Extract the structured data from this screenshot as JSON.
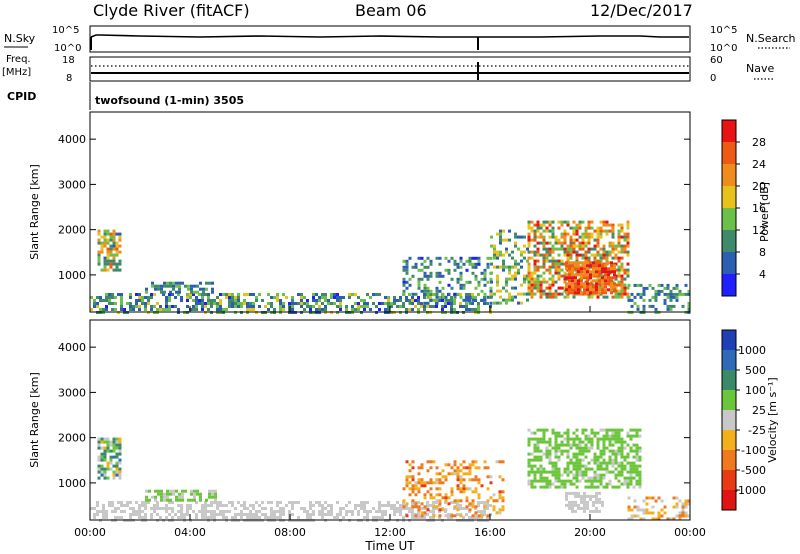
{
  "header": {
    "station": "Clyde River (fitACF)",
    "beam": "Beam 06",
    "date": "12/Dec/2017"
  },
  "top_panels": {
    "nsky_label": "N.Sky",
    "nsky_ticks": [
      "10^5",
      "10^0"
    ],
    "nsearch_label": "N.Search",
    "nsearch_ticks": [
      "10^5",
      "10^0"
    ],
    "freq_label": "Freq.",
    "freq_unit": "[MHz]",
    "freq_ticks": [
      "18",
      "8"
    ],
    "nave_label": "Nave",
    "nave_ticks": [
      "60",
      "0"
    ],
    "cpid_label": "CPID",
    "cpid_text": "twofsound (1-min) 3505"
  },
  "axes": {
    "ylabel": "Slant Range [km]",
    "xlabel": "Time UT",
    "yticks": [
      "1000",
      "2000",
      "3000",
      "4000"
    ],
    "xticks": [
      "00:00",
      "04:00",
      "08:00",
      "12:00",
      "16:00",
      "20:00",
      "00:00"
    ]
  },
  "colorbars": {
    "power": {
      "label": "Power [dB]",
      "ticks": [
        "4",
        "8",
        "12",
        "16",
        "20",
        "24",
        "28"
      ],
      "colors": [
        "#1f1fff",
        "#2c5fb4",
        "#3f8a68",
        "#6cc04a",
        "#e8c21c",
        "#f08c1e",
        "#ee5a14",
        "#e81414"
      ]
    },
    "velocity": {
      "label": "Velocity [m s⁻¹]",
      "ticks": [
        "1000",
        "500",
        "100",
        "25",
        "-25",
        "-100",
        "-500",
        "-1000"
      ],
      "colors": [
        "#1f3fb4",
        "#2f6ab8",
        "#3a8a6a",
        "#6cc63c",
        "#c8c8c8",
        "#f4b01c",
        "#f0781e",
        "#e83a14",
        "#e01414"
      ]
    }
  },
  "chart_data": [
    {
      "type": "heatmap",
      "title": "Power",
      "xlabel": "Time UT",
      "ylabel": "Slant Range [km]",
      "xlim": [
        "00:00",
        "24:00"
      ],
      "ylim": [
        180,
        4600
      ],
      "colorbar_label": "Power [dB]",
      "colorbar_range": [
        0,
        32
      ],
      "regions": [
        {
          "t0": 0.0,
          "t1": 16.0,
          "r0": 180,
          "r1": 600,
          "density": 0.5,
          "vmin": 3,
          "vmax": 18
        },
        {
          "t0": 0.3,
          "t1": 1.2,
          "r0": 1100,
          "r1": 2000,
          "density": 0.7,
          "vmin": 6,
          "vmax": 26
        },
        {
          "t0": 2.2,
          "t1": 5.0,
          "r0": 600,
          "r1": 850,
          "density": 0.55,
          "vmin": 4,
          "vmax": 14
        },
        {
          "t0": 12.5,
          "t1": 16.0,
          "r0": 400,
          "r1": 1400,
          "density": 0.35,
          "vmin": 3,
          "vmax": 16
        },
        {
          "t0": 16.0,
          "t1": 17.5,
          "r0": 400,
          "r1": 2000,
          "density": 0.4,
          "vmin": 4,
          "vmax": 20
        },
        {
          "t0": 17.5,
          "t1": 21.5,
          "r0": 500,
          "r1": 2200,
          "density": 0.6,
          "vmin": 8,
          "vmax": 30
        },
        {
          "t0": 19.0,
          "t1": 21.0,
          "r0": 600,
          "r1": 1300,
          "density": 0.85,
          "vmin": 20,
          "vmax": 31
        },
        {
          "t0": 21.5,
          "t1": 24.0,
          "r0": 180,
          "r1": 800,
          "density": 0.4,
          "vmin": 4,
          "vmax": 16
        }
      ]
    },
    {
      "type": "heatmap",
      "title": "Velocity",
      "xlabel": "Time UT",
      "ylabel": "Slant Range [km]",
      "xlim": [
        "00:00",
        "24:00"
      ],
      "ylim": [
        180,
        4600
      ],
      "colorbar_label": "Velocity [m s⁻¹]",
      "colorbar_range": [
        -1000,
        1000
      ],
      "regions": [
        {
          "t0": 0.0,
          "t1": 16.0,
          "r0": 180,
          "r1": 600,
          "density": 0.5,
          "vmin": -100,
          "vmax": 100
        },
        {
          "t0": 0.3,
          "t1": 1.2,
          "r0": 1100,
          "r1": 2000,
          "density": 0.7,
          "vmin": -300,
          "vmax": 600
        },
        {
          "t0": 2.2,
          "t1": 5.0,
          "r0": 600,
          "r1": 850,
          "density": 0.55,
          "vmin": 50,
          "vmax": 300
        },
        {
          "t0": 12.5,
          "t1": 16.5,
          "r0": 300,
          "r1": 1500,
          "density": 0.35,
          "vmin": -600,
          "vmax": -80
        },
        {
          "t0": 17.5,
          "t1": 22.0,
          "r0": 900,
          "r1": 2200,
          "density": 0.6,
          "vmin": 80,
          "vmax": 300
        },
        {
          "t0": 19.0,
          "t1": 20.5,
          "r0": 400,
          "r1": 800,
          "density": 0.6,
          "vmin": -20,
          "vmax": 20
        },
        {
          "t0": 21.5,
          "t1": 24.0,
          "r0": 180,
          "r1": 700,
          "density": 0.4,
          "vmin": -500,
          "vmax": 100
        }
      ]
    }
  ]
}
